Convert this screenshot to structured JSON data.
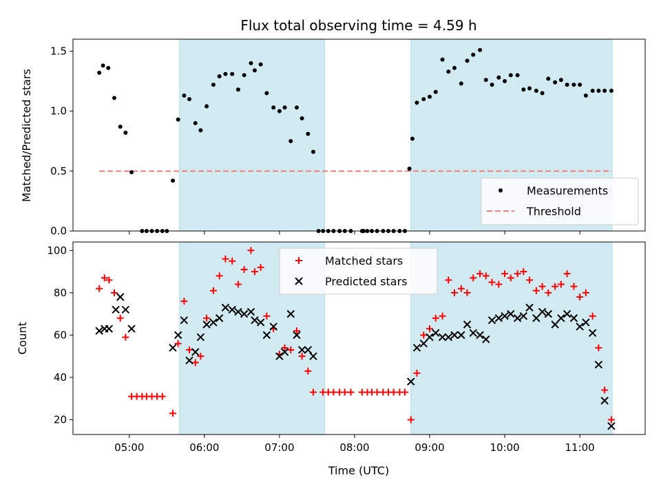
{
  "chart_data": {
    "title": "Flux total observing time = 4.59 h",
    "xlabel": "Time (UTC)",
    "x_unit": "hours UTC",
    "xlim": [
      4.25,
      11.87
    ],
    "xticks": [
      {
        "value": 5,
        "label": "05:00"
      },
      {
        "value": 6,
        "label": "06:00"
      },
      {
        "value": 7,
        "label": "07:00"
      },
      {
        "value": 8,
        "label": "08:00"
      },
      {
        "value": 9,
        "label": "09:00"
      },
      {
        "value": 10,
        "label": "10:00"
      },
      {
        "value": 11,
        "label": "11:00"
      }
    ],
    "shaded_intervals": [
      [
        5.67,
        7.6
      ],
      [
        8.75,
        11.43
      ]
    ],
    "shade_color": "#add8e6",
    "panels": [
      {
        "type": "scatter",
        "ylabel": "Matched/Predicted stars",
        "ylim": [
          0,
          1.6
        ],
        "yticks": [
          {
            "value": 0,
            "label": "0.0"
          },
          {
            "value": 0.5,
            "label": "0.5"
          },
          {
            "value": 1.0,
            "label": "1.0"
          },
          {
            "value": 1.5,
            "label": "1.5"
          }
        ],
        "legend_position": "lower-right",
        "threshold": {
          "name": "Threshold",
          "value": 0.5,
          "x_range": [
            4.6,
            11.43
          ],
          "color": "#f08080"
        },
        "series": [
          {
            "name": "Measurements",
            "marker": "dot",
            "color": "#000000",
            "x": [
              4.6,
              4.65,
              4.72,
              4.8,
              4.88,
              4.95,
              5.03,
              5.17,
              5.23,
              5.3,
              5.37,
              5.44,
              5.5,
              5.58,
              5.65,
              5.73,
              5.8,
              5.88,
              5.95,
              6.03,
              6.12,
              6.2,
              6.28,
              6.37,
              6.45,
              6.53,
              6.62,
              6.67,
              6.75,
              6.83,
              6.92,
              7.0,
              7.07,
              7.15,
              7.23,
              7.3,
              7.38,
              7.45,
              7.52,
              8.17,
              8.23,
              8.3,
              8.38,
              8.45,
              8.52,
              8.6,
              8.67,
              8.73,
              8.77,
              8.83,
              8.92,
              9.0,
              9.08,
              9.17,
              9.25,
              9.33,
              9.42,
              9.5,
              9.58,
              9.67,
              9.75,
              9.83,
              9.92,
              10.0,
              10.08,
              10.17,
              10.25,
              10.33,
              10.42,
              10.5,
              10.58,
              10.67,
              10.75,
              10.83,
              10.92,
              11.0,
              11.08,
              11.17,
              11.25,
              11.33,
              11.42
            ],
            "y": [
              1.32,
              1.38,
              1.36,
              1.11,
              0.87,
              0.82,
              0.49,
              0,
              0,
              0,
              0,
              0,
              0,
              0.42,
              0.93,
              1.13,
              1.1,
              0.9,
              0.84,
              1.04,
              1.22,
              1.29,
              1.31,
              1.31,
              1.18,
              1.3,
              1.4,
              1.34,
              1.39,
              1.15,
              1.03,
              1.0,
              1.03,
              0.75,
              1.03,
              0.94,
              0.81,
              0.66,
              0,
              0,
              0,
              0,
              0,
              0,
              0,
              0,
              0,
              0.52,
              0.77,
              1.07,
              1.1,
              1.12,
              1.16,
              1.43,
              1.33,
              1.36,
              1.23,
              1.42,
              1.47,
              1.51,
              1.26,
              1.22,
              1.28,
              1.25,
              1.3,
              1.3,
              1.18,
              1.19,
              1.17,
              1.15,
              1.27,
              1.24,
              1.26,
              1.22,
              1.22,
              1.22,
              1.13,
              1.17,
              1.17,
              1.17,
              1.17
            ]
          }
        ],
        "extra_zero_x": [
          7.58,
          7.65,
          7.72,
          7.8,
          7.87,
          7.95,
          8.1,
          8.12
        ]
      },
      {
        "type": "scatter",
        "ylabel": "Count",
        "ylim": [
          13,
          104
        ],
        "yticks": [
          {
            "value": 20,
            "label": "20"
          },
          {
            "value": 40,
            "label": "40"
          },
          {
            "value": 60,
            "label": "60"
          },
          {
            "value": 80,
            "label": "80"
          },
          {
            "value": 100,
            "label": "100"
          }
        ],
        "legend_position": "top-center",
        "series": [
          {
            "name": "Matched stars",
            "marker": "plus",
            "color": "#ff0000",
            "x": [
              4.6,
              4.67,
              4.73,
              4.8,
              4.88,
              4.95,
              5.03,
              5.1,
              5.17,
              5.23,
              5.3,
              5.37,
              5.44,
              5.58,
              5.65,
              5.73,
              5.8,
              5.88,
              5.95,
              6.03,
              6.12,
              6.2,
              6.28,
              6.37,
              6.45,
              6.53,
              6.62,
              6.67,
              6.75,
              6.83,
              6.92,
              7.0,
              7.07,
              7.15,
              7.23,
              7.3,
              7.38,
              7.45,
              7.58,
              7.65,
              7.72,
              7.8,
              7.87,
              7.95,
              8.1,
              8.17,
              8.23,
              8.3,
              8.38,
              8.45,
              8.52,
              8.6,
              8.67,
              8.75,
              8.83,
              8.92,
              9.0,
              9.08,
              9.17,
              9.25,
              9.33,
              9.42,
              9.5,
              9.58,
              9.67,
              9.75,
              9.83,
              9.92,
              10.0,
              10.08,
              10.17,
              10.25,
              10.33,
              10.42,
              10.5,
              10.58,
              10.67,
              10.75,
              10.83,
              10.92,
              11.0,
              11.08,
              11.17,
              11.25,
              11.33,
              11.42
            ],
            "y": [
              82,
              87,
              86,
              80,
              68,
              59,
              31,
              31,
              31,
              31,
              31,
              31,
              31,
              23,
              56,
              76,
              53,
              47,
              50,
              68,
              81,
              88,
              96,
              95,
              84,
              91,
              100,
              90,
              92,
              69,
              63,
              51,
              54,
              53,
              62,
              50,
              43,
              33,
              33,
              33,
              33,
              33,
              33,
              33,
              33,
              33,
              33,
              33,
              33,
              33,
              33,
              33,
              33,
              20,
              42,
              60,
              63,
              68,
              69,
              86,
              80,
              82,
              80,
              87,
              89,
              88,
              85,
              84,
              89,
              87,
              89,
              90,
              86,
              81,
              83,
              80,
              83,
              84,
              89,
              83,
              78,
              80,
              69,
              54,
              34,
              20
            ]
          },
          {
            "name": "Predicted stars",
            "marker": "x",
            "color": "#000000",
            "x": [
              4.6,
              4.67,
              4.73,
              4.82,
              4.88,
              4.95,
              5.03,
              5.58,
              5.65,
              5.73,
              5.8,
              5.88,
              5.95,
              6.03,
              6.12,
              6.2,
              6.28,
              6.37,
              6.45,
              6.53,
              6.62,
              6.67,
              6.75,
              6.83,
              6.92,
              7.0,
              7.07,
              7.15,
              7.23,
              7.3,
              7.38,
              7.45,
              8.75,
              8.83,
              8.92,
              9.0,
              9.08,
              9.17,
              9.25,
              9.33,
              9.42,
              9.5,
              9.58,
              9.67,
              9.75,
              9.83,
              9.92,
              10.0,
              10.08,
              10.17,
              10.25,
              10.33,
              10.42,
              10.5,
              10.58,
              10.67,
              10.75,
              10.83,
              10.92,
              11.0,
              11.08,
              11.17,
              11.25,
              11.33,
              11.42
            ],
            "y": [
              62,
              63,
              63,
              72,
              78,
              72,
              63,
              54,
              60,
              67,
              48,
              52,
              59,
              65,
              66,
              68,
              73,
              72,
              71,
              70,
              71,
              67,
              66,
              60,
              64,
              50,
              52,
              70,
              60,
              53,
              53,
              50,
              38,
              54,
              56,
              59,
              61,
              59,
              59,
              60,
              60,
              65,
              61,
              60,
              58,
              67,
              68,
              69,
              70,
              68,
              69,
              73,
              68,
              71,
              70,
              65,
              68,
              70,
              68,
              64,
              66,
              61,
              46,
              29,
              17
            ]
          }
        ]
      }
    ]
  }
}
